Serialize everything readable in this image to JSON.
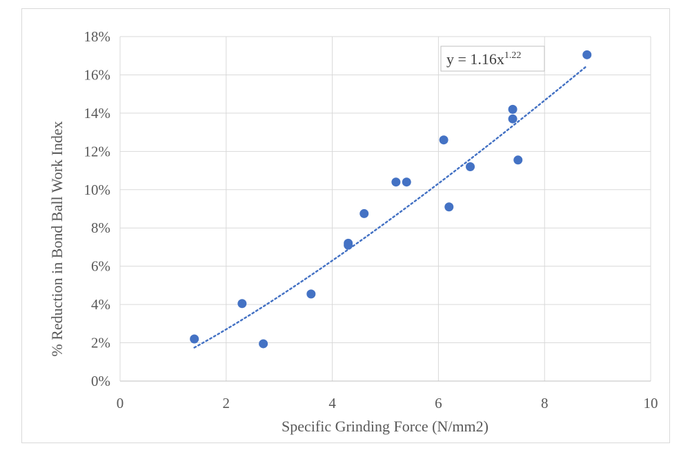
{
  "chart_data": {
    "type": "scatter",
    "title": "",
    "xlabel": "Specific Grinding Force (N/mm2)",
    "ylabel": "% Reduction in Bond Ball Work Index",
    "xlim": [
      0,
      10
    ],
    "ylim": [
      0,
      18
    ],
    "x_ticks": [
      "0",
      "2",
      "4",
      "6",
      "8",
      "10"
    ],
    "y_ticks": [
      "0%",
      "2%",
      "4%",
      "6%",
      "8%",
      "10%",
      "12%",
      "14%",
      "16%",
      "18%"
    ],
    "grid": true,
    "legend": "none",
    "series": [
      {
        "points": [
          {
            "x": 1.4,
            "y": 2.2
          },
          {
            "x": 2.3,
            "y": 4.05
          },
          {
            "x": 2.7,
            "y": 1.95
          },
          {
            "x": 3.6,
            "y": 4.55
          },
          {
            "x": 4.3,
            "y": 7.1
          },
          {
            "x": 4.3,
            "y": 7.2
          },
          {
            "x": 4.6,
            "y": 8.75
          },
          {
            "x": 5.2,
            "y": 10.4
          },
          {
            "x": 5.4,
            "y": 10.4
          },
          {
            "x": 6.1,
            "y": 12.6
          },
          {
            "x": 6.2,
            "y": 9.1
          },
          {
            "x": 6.6,
            "y": 11.2
          },
          {
            "x": 7.4,
            "y": 14.2
          },
          {
            "x": 7.4,
            "y": 13.7
          },
          {
            "x": 7.5,
            "y": 11.55
          },
          {
            "x": 8.8,
            "y": 17.05
          }
        ]
      }
    ],
    "trendline": {
      "type": "power",
      "a": 1.16,
      "b": 1.22,
      "x_range": [
        1.4,
        8.8
      ],
      "style": "dotted",
      "equation_base": "y = 1.16x",
      "equation_exponent": "1.22"
    },
    "colors": {
      "marker": "#4472C4",
      "trendline": "#4472C4",
      "grid": "#d9d9d9",
      "text": "#595959"
    }
  }
}
